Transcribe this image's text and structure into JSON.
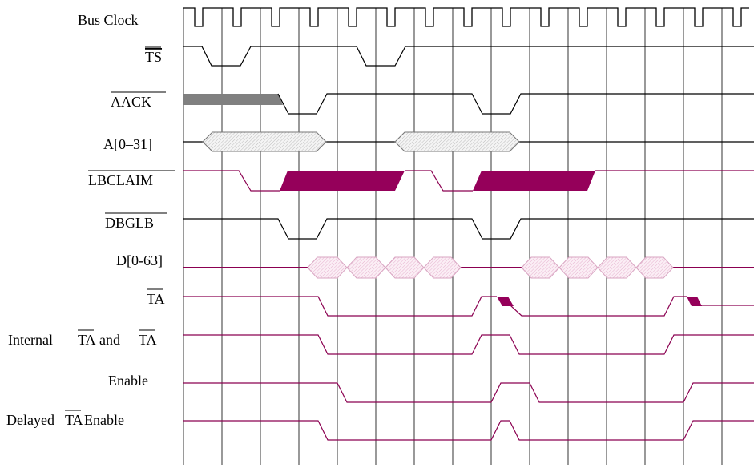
{
  "labels": {
    "bus_clock": "Bus Clock",
    "ts": "TS",
    "aack": "AACK",
    "addr": "A[0–31]",
    "lbclaim": "LBCLAIM",
    "dbglb": "DBGLB",
    "data": "D[0-63]",
    "ta": "TA",
    "internal_prefix": "Internal",
    "internal_ta1": "TA",
    "internal_and": "and",
    "internal_ta2": "TA",
    "enable": "Enable",
    "delayed_prefix": "Delayed",
    "delayed_ta": "TA",
    "delayed_suffix": "Enable"
  },
  "colors": {
    "black": "#000000",
    "magenta": "#8B0051",
    "magenta_fill": "#95005A",
    "gray_fill": "#808080",
    "hatch_light": "#e8e8e8",
    "pink_hatch": "#f3d6e6",
    "grid": "#000000"
  }
}
